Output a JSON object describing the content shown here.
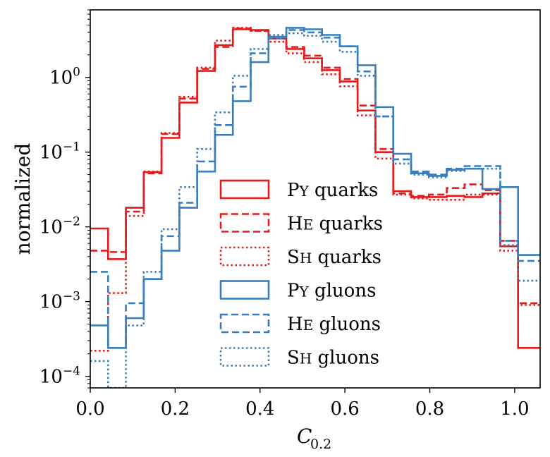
{
  "chart_data": {
    "type": "step-histogram",
    "xlabel": "C",
    "xlabel_sub": "0.2",
    "ylabel": "normalized",
    "yscale": "log",
    "xlim": [
      0.0,
      1.06
    ],
    "ylim": [
      7e-05,
      8.0
    ],
    "x_ticks": [
      {
        "value": 0.0,
        "label": "0.0"
      },
      {
        "value": 0.2,
        "label": "0.2"
      },
      {
        "value": 0.4,
        "label": "0.4"
      },
      {
        "value": 0.6,
        "label": "0.6"
      },
      {
        "value": 0.8,
        "label": "0.8"
      },
      {
        "value": 1.0,
        "label": "1.0"
      }
    ],
    "y_ticks": [
      {
        "value": 1,
        "base": "10",
        "exp": "0"
      },
      {
        "value": 0.1,
        "base": "10",
        "exp": "−1"
      },
      {
        "value": 0.01,
        "base": "10",
        "exp": "−2"
      },
      {
        "value": 0.001,
        "base": "10",
        "exp": "−3"
      },
      {
        "value": 0.0001,
        "base": "10",
        "exp": "−4"
      }
    ],
    "bin_edges": [
      0.0,
      0.042,
      0.084,
      0.126,
      0.168,
      0.21,
      0.252,
      0.294,
      0.336,
      0.378,
      0.42,
      0.462,
      0.504,
      0.546,
      0.588,
      0.63,
      0.672,
      0.714,
      0.756,
      0.798,
      0.84,
      0.882,
      0.924,
      0.966,
      1.008,
      1.06
    ],
    "series": [
      {
        "key": "py-quarks",
        "name": "PY quarks",
        "name_main": "P",
        "name_small": "Y",
        "name_rest": " quarks",
        "color": "#e41a1c",
        "dash": "solid",
        "values": [
          0.0095,
          0.0037,
          0.018,
          0.054,
          0.155,
          0.46,
          1.22,
          2.7,
          4.4,
          4.3,
          3.3,
          2.4,
          1.8,
          1.25,
          0.88,
          0.36,
          0.1,
          0.03,
          0.025,
          0.025,
          0.026,
          0.025,
          0.028,
          0.0055,
          0.00024
        ]
      },
      {
        "key": "he-quarks",
        "name": "HE quarks",
        "name_main": "H",
        "name_small": "E",
        "name_rest": " quarks",
        "color": "#e41a1c",
        "dash": "dashed",
        "values": [
          0.0048,
          0.0046,
          0.016,
          0.052,
          0.175,
          0.52,
          1.3,
          2.55,
          4.5,
          4.2,
          3.3,
          2.55,
          1.95,
          1.35,
          0.95,
          0.42,
          0.11,
          0.028,
          0.026,
          0.027,
          0.033,
          0.037,
          0.031,
          0.0065,
          0.00095
        ]
      },
      {
        "key": "sh-quarks",
        "name": "SH quarks",
        "name_main": "S",
        "name_small": "H",
        "name_rest": " quarks",
        "color": "#e41a1c",
        "dash": "dotted",
        "values": [
          0.00022,
          0.0013,
          0.014,
          0.055,
          0.18,
          0.55,
          1.35,
          3.1,
          4.6,
          4.2,
          3.0,
          2.1,
          1.6,
          1.1,
          0.76,
          0.31,
          0.082,
          0.027,
          0.024,
          0.023,
          0.023,
          0.027,
          0.027,
          0.0048,
          0.0009
        ]
      },
      {
        "key": "py-gluons",
        "name": "PY gluons",
        "name_main": "P",
        "name_small": "Y",
        "name_rest": " gluons",
        "color": "#3a7dba",
        "dash": "solid",
        "values": [
          0.00048,
          0.00024,
          0.0006,
          0.002,
          0.0048,
          0.018,
          0.055,
          0.17,
          0.48,
          1.6,
          3.5,
          4.6,
          4.4,
          3.7,
          2.6,
          1.45,
          0.4,
          0.095,
          0.052,
          0.048,
          0.058,
          0.06,
          0.032,
          0.034,
          0.0042
        ]
      },
      {
        "key": "he-gluons",
        "name": "HE gluons",
        "name_main": "H",
        "name_small": "E",
        "name_rest": " gluons",
        "color": "#3a7dba",
        "dash": "dashed",
        "values": [
          0.0025,
          0.00024,
          0.00095,
          0.002,
          0.0075,
          0.021,
          0.075,
          0.23,
          0.75,
          2.1,
          3.3,
          4.3,
          4.0,
          3.4,
          2.6,
          1.2,
          0.3,
          0.08,
          0.055,
          0.05,
          0.06,
          0.065,
          0.065,
          0.0065,
          0.0035
        ]
      },
      {
        "key": "sh-gluons",
        "name": "SH gluons",
        "name_main": "S",
        "name_small": "H",
        "name_rest": " gluons",
        "color": "#3a7dba",
        "dash": "dotted",
        "values": [
          0.00016,
          7e-05,
          0.00048,
          0.0025,
          0.0093,
          0.034,
          0.11,
          0.34,
          1.05,
          2.4,
          3.7,
          3.9,
          3.6,
          3.0,
          2.2,
          1.05,
          0.3,
          0.07,
          0.05,
          0.046,
          0.056,
          0.06,
          0.06,
          0.0057,
          0.0019
        ]
      }
    ]
  }
}
